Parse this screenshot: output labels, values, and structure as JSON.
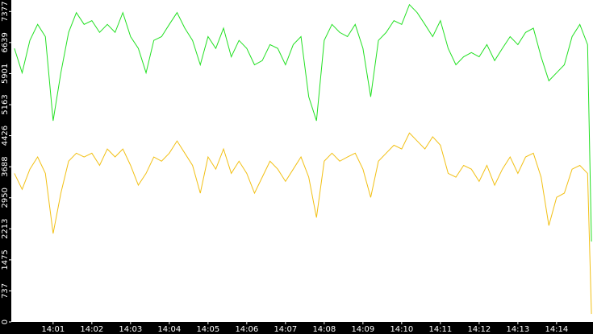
{
  "chart_data": {
    "type": "line",
    "x": [
      0,
      0.2,
      0.4,
      0.6,
      0.8,
      1,
      1.2,
      1.4,
      1.6,
      1.8,
      2,
      2.2,
      2.4,
      2.6,
      2.8,
      3,
      3.2,
      3.4,
      3.6,
      3.8,
      4,
      4.2,
      4.4,
      4.6,
      4.8,
      5,
      5.2,
      5.4,
      5.6,
      5.8,
      6,
      6.2,
      6.4,
      6.6,
      6.8,
      7,
      7.2,
      7.4,
      7.6,
      7.8,
      8,
      8.2,
      8.4,
      8.6,
      8.8,
      9,
      9.2,
      9.4,
      9.6,
      9.8,
      10,
      10.2,
      10.4,
      10.6,
      10.8,
      11,
      11.2,
      11.4,
      11.6,
      11.8,
      12,
      12.2,
      12.4,
      12.6,
      12.8,
      13,
      13.2,
      13.4,
      13.6,
      13.8,
      14,
      14.2,
      14.4,
      14.6,
      14.8,
      14.9
    ],
    "series": [
      {
        "color": "#22e022",
        "values": [
          6500,
          5920,
          6690,
          7070,
          6780,
          4780,
          5920,
          6880,
          7350,
          7070,
          7160,
          6880,
          7070,
          6880,
          7350,
          6780,
          6500,
          5920,
          6690,
          6780,
          7070,
          7350,
          6980,
          6690,
          6110,
          6780,
          6500,
          6980,
          6300,
          6690,
          6500,
          6110,
          6210,
          6590,
          6500,
          6110,
          6590,
          6780,
          5350,
          4780,
          6690,
          7070,
          6880,
          6780,
          7070,
          6500,
          5350,
          6690,
          6880,
          7160,
          7070,
          7540,
          7350,
          7070,
          6780,
          7160,
          6500,
          6110,
          6300,
          6400,
          6300,
          6590,
          6210,
          6500,
          6780,
          6590,
          6880,
          6980,
          6300,
          5730,
          5920,
          6110,
          6780,
          7070,
          6590,
          1910
        ]
      },
      {
        "color": "#f2c014",
        "values": [
          3530,
          3150,
          3630,
          3920,
          3530,
          2100,
          3060,
          3820,
          4010,
          3920,
          4010,
          3720,
          4110,
          3920,
          4110,
          3720,
          3250,
          3530,
          3920,
          3820,
          4010,
          4300,
          4010,
          3720,
          3060,
          3920,
          3630,
          4110,
          3530,
          3820,
          3530,
          3060,
          3440,
          3820,
          3630,
          3340,
          3630,
          3920,
          3440,
          2480,
          3820,
          4010,
          3820,
          3920,
          4010,
          3630,
          2960,
          3820,
          4010,
          4200,
          4110,
          4490,
          4300,
          4110,
          4400,
          4200,
          3530,
          3440,
          3720,
          3630,
          3340,
          3720,
          3250,
          3630,
          3920,
          3530,
          3920,
          4010,
          3440,
          2290,
          2960,
          3060,
          3630,
          3720,
          3530,
          190
        ]
      }
    ],
    "xlim": [
      -0.08,
      14.94
    ],
    "xticks": [
      {
        "value": 1,
        "label": "14:01"
      },
      {
        "value": 2,
        "label": "14:02"
      },
      {
        "value": 3,
        "label": "14:03"
      },
      {
        "value": 4,
        "label": "14:04"
      },
      {
        "value": 5,
        "label": "14:05"
      },
      {
        "value": 6,
        "label": "14:06"
      },
      {
        "value": 7,
        "label": "14:07"
      },
      {
        "value": 8,
        "label": "14:08"
      },
      {
        "value": 9,
        "label": "14:09"
      },
      {
        "value": 10,
        "label": "14:10"
      },
      {
        "value": 11,
        "label": "14:11"
      },
      {
        "value": 12,
        "label": "14:12"
      },
      {
        "value": 13,
        "label": "14:13"
      },
      {
        "value": 14,
        "label": "14:14"
      }
    ],
    "ylim": [
      0,
      7650
    ],
    "yticks": [
      0,
      737,
      1475,
      2213,
      2950,
      3688,
      4426,
      5163,
      5901,
      6639,
      7377
    ]
  }
}
